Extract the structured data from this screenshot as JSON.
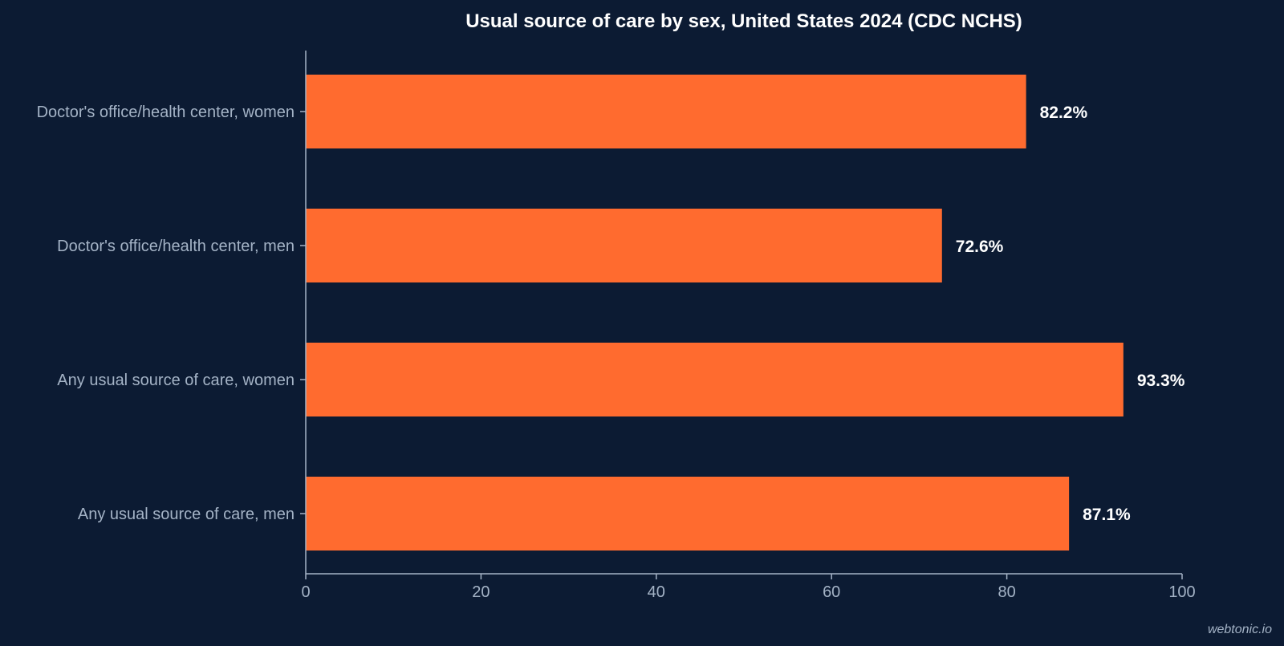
{
  "chart_data": {
    "type": "bar",
    "orientation": "horizontal",
    "title": "Usual source of care by sex, United States 2024 (CDC NCHS)",
    "xlabel": "",
    "ylabel": "",
    "categories": [
      "Doctor's office/health center, women",
      "Doctor's office/health center, men",
      "Any usual source of care, women",
      "Any usual source of care, men"
    ],
    "values": [
      82.2,
      72.6,
      93.3,
      87.1
    ],
    "value_labels": [
      "82.2%",
      "72.6%",
      "93.3%",
      "87.1%"
    ],
    "xlim": [
      0,
      100
    ],
    "xticks": [
      0,
      20,
      40,
      60,
      80,
      100
    ],
    "grid": false,
    "legend": "none",
    "bar_color": "#ff6b2f"
  },
  "colors": {
    "background": "#0c1b33",
    "bar": "#ff6b2f",
    "axis": "#a4b3c6",
    "label_text": "#a4b3c6",
    "value_text": "#ffffff",
    "title_text": "#ffffff"
  },
  "watermark": "webtonic.io"
}
